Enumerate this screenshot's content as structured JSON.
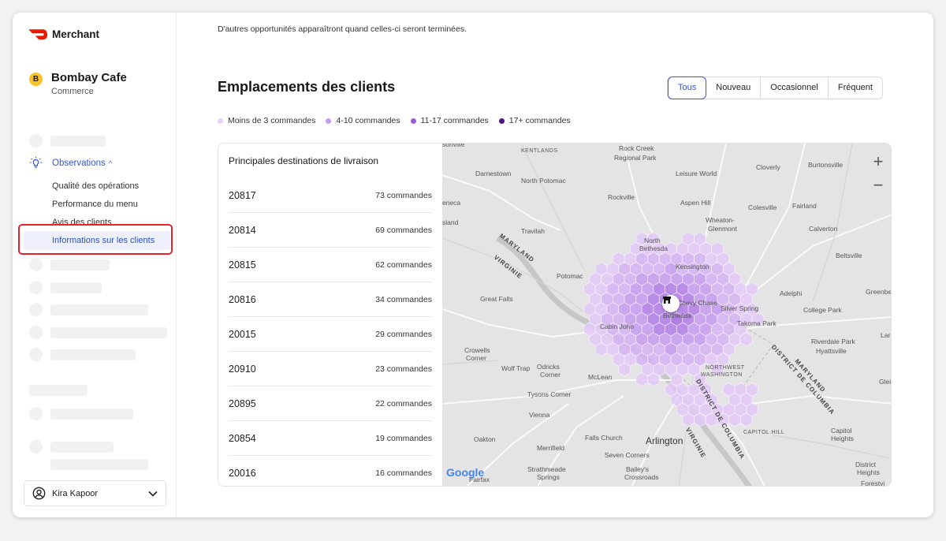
{
  "app": {
    "name": "Merchant",
    "brand_color": "#eb1700"
  },
  "store": {
    "initial": "B",
    "name": "Bombay Cafe",
    "type": "Commerce"
  },
  "nav": {
    "section_label": "Observations",
    "section_caret": "^",
    "items": [
      {
        "label": "Qualité des opérations",
        "active": false
      },
      {
        "label": "Performance du menu",
        "active": false
      },
      {
        "label": "Avis des clients",
        "active": false
      },
      {
        "label": "Informations sur les clients",
        "active": true
      }
    ]
  },
  "user": {
    "name": "Kira Kapoor"
  },
  "main": {
    "notice": "D'autres opportunités apparaîtront quand celles-ci seront terminées.",
    "title": "Emplacements des clients",
    "filters": [
      {
        "label": "Tous",
        "active": true
      },
      {
        "label": "Nouveau",
        "active": false
      },
      {
        "label": "Occasionnel",
        "active": false
      },
      {
        "label": "Fréquent",
        "active": false
      }
    ],
    "legend": [
      {
        "label": "Moins de 3 commandes",
        "color": "#e7d2f7"
      },
      {
        "label": "4-10 commandes",
        "color": "#c79cf0"
      },
      {
        "label": "11-17 commandes",
        "color": "#9b5ad6"
      },
      {
        "label": "17+ commandes",
        "color": "#4b1582"
      }
    ],
    "list_title": "Principales destinations de livraison",
    "destinations": [
      {
        "zip": "20817",
        "orders": "73 commandes"
      },
      {
        "zip": "20814",
        "orders": "69 commandes"
      },
      {
        "zip": "20815",
        "orders": "62 commandes"
      },
      {
        "zip": "20816",
        "orders": "34 commandes"
      },
      {
        "zip": "20015",
        "orders": "29 commandes"
      },
      {
        "zip": "20910",
        "orders": "23 commandes"
      },
      {
        "zip": "20895",
        "orders": "22 commandes"
      },
      {
        "zip": "20854",
        "orders": "19 commandes"
      },
      {
        "zip": "20016",
        "orders": "16 commandes"
      }
    ]
  },
  "map": {
    "zoom_in": "+",
    "zoom_out": "−",
    "attribution": "Google",
    "places": [
      "sonville",
      "KENTLANDS",
      "Rock Creek",
      "Regional Park",
      "Darnestown",
      "North Potomac",
      "Leisure World",
      "Cloverly",
      "Burtonsville",
      "Rockville",
      "Aspen Hill",
      "Colesville",
      "Fairland",
      "eneca",
      "Wheaton-",
      "Glenmont",
      "sland",
      "Travilah",
      "North",
      "Bethesda",
      "Calverton",
      "Beltsville",
      "Kensington",
      "Potomac",
      "Great Falls",
      "Chevy Chase",
      "Adelphi",
      "Greenbe",
      "Bethesda",
      "Silver Spring",
      "College Park",
      "Cabin John",
      "Takoma Park",
      "Lar",
      "Crowells",
      "Corner",
      "Riverdale Park",
      "Hyattsville",
      "Wolf Trap",
      "Odricks",
      "Corner",
      "McLean",
      "Tysons Corner",
      "Vienna",
      "Oakton",
      "Falls Church",
      "Arlington",
      "Merrifield",
      "Seven Corners",
      "Strathmeade",
      "Springs",
      "Bailey's",
      "Crossroads",
      "Fairfax",
      "Capitol",
      "Heights",
      "District",
      "Heights",
      "Forestvi",
      "Glei",
      "CAPITOL HILL",
      "NORTHWEST",
      "WASHINGTON"
    ],
    "region_labels": [
      "MARYLAND",
      "VIRGINIE",
      "MARYLAND",
      "DISTRICT DE COLUMBIA",
      "DISTRICT DE COLUMBIA",
      "VIRGINIE"
    ]
  }
}
